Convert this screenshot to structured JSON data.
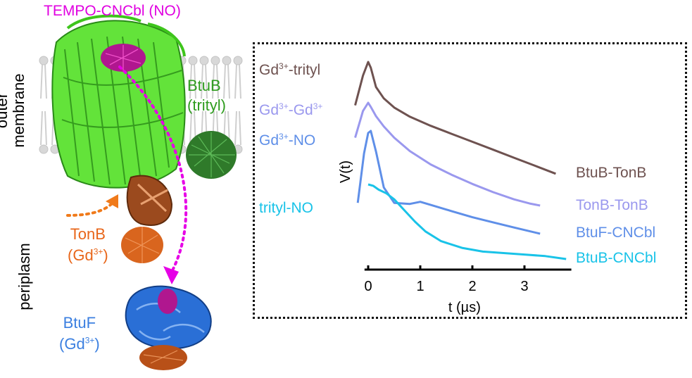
{
  "protein_figure": {
    "title_label": "TEMPO-CNCbl (NO)",
    "outer_membrane_label_line1": "outer",
    "outer_membrane_label_line2": "membrane",
    "periplasm_label": "periplasm",
    "btub_label_line1": "BtuB",
    "btub_label_line2": "(trityl)",
    "tonb_label_line1": "TonB",
    "tonb_label_line2": "(Gd",
    "tonb_label_sup": "3+",
    "tonb_label_end": ")",
    "btuf_label_line1": "BtuF",
    "btuf_label_line2": "(Gd",
    "btuf_label_sup": "3+",
    "btuf_label_end": ")"
  },
  "colors": {
    "magenta": "#e000e0",
    "green": "#2e9c1e",
    "orange": "#e8661a",
    "blue": "#3b7fe0",
    "brown": "#6e5250",
    "lavender": "#9a98ee",
    "medium_blue": "#5f8fe8",
    "cyan": "#19c3e8"
  },
  "chart_data": {
    "type": "line",
    "xlabel": "t (µs)",
    "ylabel": "V(t)",
    "xlim": [
      -0.1,
      3.9
    ],
    "xticks": [
      "0",
      "1",
      "2",
      "3"
    ],
    "xtick_values": [
      0,
      1,
      2,
      3
    ],
    "grid": false,
    "series": [
      {
        "name_left_base": "Gd",
        "name_left_sup": "3+",
        "name_left_rest": "-trityl",
        "name_right": "BtuB-TonB",
        "color": "#6e5250",
        "x": [
          -0.25,
          -0.1,
          0.0,
          0.05,
          0.15,
          0.3,
          0.5,
          0.8,
          1.2,
          1.6,
          2.0,
          2.4,
          2.8,
          3.2,
          3.6
        ],
        "y": [
          0.62,
          0.88,
          1.0,
          0.95,
          0.78,
          0.68,
          0.6,
          0.52,
          0.44,
          0.37,
          0.3,
          0.23,
          0.16,
          0.09,
          0.02
        ]
      },
      {
        "name_left_base": "Gd",
        "name_left_sup": "3+",
        "name_left_rest": "-Gd",
        "name_left_sup2": "3+",
        "name_right": "TonB-TonB",
        "color": "#9a98ee",
        "x": [
          -0.25,
          -0.1,
          0.0,
          0.05,
          0.15,
          0.3,
          0.5,
          0.8,
          1.2,
          1.6,
          2.0,
          2.4,
          2.8,
          3.1,
          3.3
        ],
        "y": [
          0.66,
          0.92,
          1.0,
          0.96,
          0.87,
          0.77,
          0.66,
          0.53,
          0.4,
          0.3,
          0.21,
          0.13,
          0.06,
          0.02,
          0.0
        ]
      },
      {
        "name_left_base": "Gd",
        "name_left_sup": "3+",
        "name_left_rest": "-NO",
        "name_right": "BtuF-CNCbl",
        "color": "#5f8fe8",
        "x": [
          -0.2,
          -0.08,
          0.0,
          0.05,
          0.15,
          0.3,
          0.5,
          0.8,
          1.0,
          1.2,
          1.6,
          2.0,
          2.4,
          2.8,
          3.3
        ],
        "y": [
          0.3,
          0.78,
          0.98,
          1.0,
          0.8,
          0.45,
          0.3,
          0.29,
          0.31,
          0.28,
          0.22,
          0.16,
          0.11,
          0.06,
          0.0
        ]
      },
      {
        "name_left_base": "trityl-NO",
        "name_right": "BtuB-CNCbl",
        "color": "#19c3e8",
        "x": [
          0.0,
          0.1,
          0.2,
          0.35,
          0.5,
          0.7,
          0.9,
          1.1,
          1.4,
          1.8,
          2.2,
          2.6,
          3.0,
          3.4,
          3.8
        ],
        "y": [
          1.0,
          0.98,
          0.93,
          0.88,
          0.8,
          0.65,
          0.5,
          0.37,
          0.24,
          0.15,
          0.1,
          0.08,
          0.06,
          0.04,
          0.0
        ]
      }
    ]
  }
}
